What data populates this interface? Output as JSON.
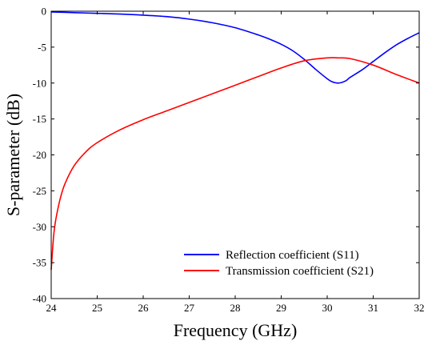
{
  "chart_data": {
    "type": "line",
    "xlabel": "Frequency (GHz)",
    "ylabel": "S-parameter (dB)",
    "xlim": [
      24,
      32
    ],
    "ylim": [
      -40,
      0
    ],
    "xticks": [
      24,
      25,
      26,
      27,
      28,
      29,
      30,
      31,
      32
    ],
    "yticks": [
      0,
      -5,
      -10,
      -15,
      -20,
      -25,
      -30,
      -35,
      -40
    ],
    "grid": false,
    "legend_position": "bottom-right",
    "series": [
      {
        "name": "Reflection coefficient (S11)",
        "color": "#0000ff",
        "x": [
          24,
          24.5,
          25,
          25.5,
          26,
          26.5,
          27,
          27.5,
          28,
          28.5,
          28.75,
          29,
          29.25,
          29.5,
          29.75,
          30,
          30.1,
          30.25,
          30.4,
          30.5,
          30.75,
          31,
          31.25,
          31.5,
          31.75,
          32
        ],
        "y": [
          -0.1,
          -0.2,
          -0.3,
          -0.4,
          -0.55,
          -0.75,
          -1.1,
          -1.6,
          -2.3,
          -3.3,
          -3.9,
          -4.6,
          -5.5,
          -6.7,
          -8.1,
          -9.4,
          -9.8,
          -10.0,
          -9.7,
          -9.2,
          -8.2,
          -7.0,
          -5.8,
          -4.7,
          -3.8,
          -3.0
        ]
      },
      {
        "name": "Transmission coefficient (S21)",
        "color": "#ff0000",
        "x": [
          24,
          24.05,
          24.1,
          24.2,
          24.3,
          24.5,
          24.75,
          25,
          25.5,
          26,
          26.5,
          27,
          27.5,
          28,
          28.5,
          29,
          29.5,
          30,
          30.25,
          30.5,
          31,
          31.5,
          32
        ],
        "y": [
          -36.0,
          -31.5,
          -29.0,
          -26.0,
          -24.0,
          -21.5,
          -19.6,
          -18.3,
          -16.5,
          -15.1,
          -13.9,
          -12.7,
          -11.5,
          -10.3,
          -9.1,
          -7.9,
          -6.9,
          -6.5,
          -6.5,
          -6.6,
          -7.5,
          -8.8,
          -10.0
        ]
      }
    ]
  }
}
